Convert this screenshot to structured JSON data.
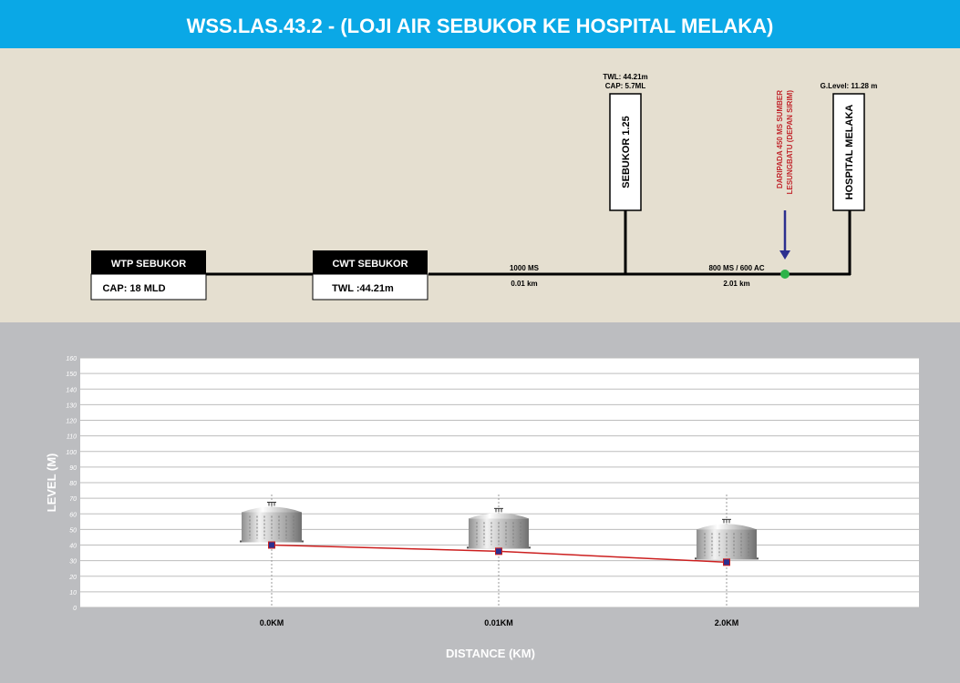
{
  "title": "WSS.LAS.43.2 - (LOJI AIR SEBUKOR KE HOSPITAL MELAKA)",
  "schematic": {
    "wtp": {
      "name": "WTP SEBUKOR",
      "info": "CAP: 18 MLD"
    },
    "cwt": {
      "name": "CWT SEBUKOR",
      "info": "TWL :44.21m"
    },
    "pipe1": {
      "size": "1000 MS",
      "length": "0.01 km"
    },
    "pipe2": {
      "size": "800 MS / 600 AC",
      "length": "2.01 km"
    },
    "reservoir1": {
      "name": "SEBUKOR 1.25",
      "twl": "TWL: 44.21m",
      "cap": "CAP: 5.7ML"
    },
    "source": {
      "line1": "DARIPADA 450 MS SUMBER",
      "line2": "LESUNGBATU (DEPAN SIRIM)"
    },
    "hospital": {
      "name": "HOSPITAL MELAKA",
      "glevel": "G.Level: 11.28 m"
    }
  },
  "colors": {
    "header": "#0aa8e6",
    "schematic_bg": "#e5dfd0",
    "chart_bg": "#bcbdc0",
    "line": "#cc1f1f",
    "marker": "#2c2f8f",
    "junction": "#2db34a",
    "source_text": "#c1272d"
  },
  "chart_data": {
    "type": "line",
    "categories": [
      "0.0KM",
      "0.01KM",
      "2.0KM"
    ],
    "series": [
      {
        "values": [
          40,
          36,
          29
        ]
      }
    ],
    "xlabel": "DISTANCE (KM)",
    "ylabel": "LEVEL (M)",
    "ylim": [
      0,
      160
    ],
    "yticks": [
      0,
      10,
      20,
      30,
      40,
      50,
      60,
      70,
      80,
      90,
      100,
      110,
      120,
      130,
      140,
      150,
      160
    ],
    "grid": true,
    "markers": "reservoir-tank-icon"
  }
}
